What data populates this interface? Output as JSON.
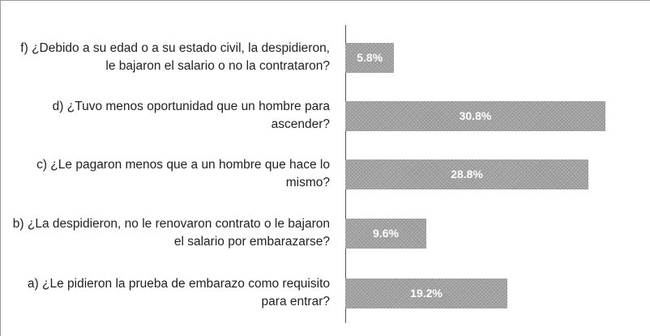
{
  "chart_data": {
    "type": "barh",
    "categories": [
      "f) ¿Debido a su edad o a su estado civil, la despidieron, le bajaron el salario o no la contrataron?",
      "d) ¿Tuvo menos oportunidad que un hombre para ascender?",
      "c) ¿Le pagaron menos que a un hombre que hace lo mismo?",
      "b) ¿La despidieron, no le renovaron contrato o le bajaron el salario por embarazarse?",
      "a) ¿Le pidieron la prueba de embarazo como requisito para entrar?"
    ],
    "values": [
      5.8,
      30.8,
      28.8,
      9.6,
      19.2
    ],
    "value_labels": [
      "5.8%",
      "30.8%",
      "28.8%",
      "9.6%",
      "19.2%"
    ],
    "color": "#a3a3a3"
  }
}
